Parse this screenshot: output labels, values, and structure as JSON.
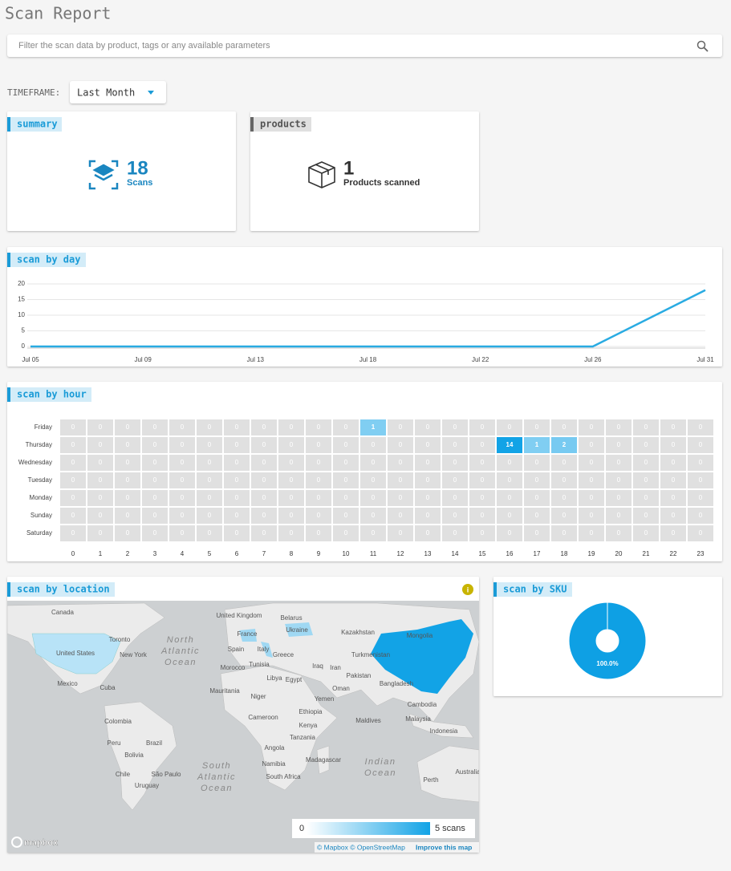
{
  "header": {
    "title": "Scan Report"
  },
  "search": {
    "placeholder": "Filter the scan data by product, tags or any available parameters"
  },
  "timeframe": {
    "label": "TIMEFRAME:",
    "value": "Last Month"
  },
  "summary": {
    "tag": "summary",
    "count": 18,
    "unit": "Scans"
  },
  "products": {
    "tag": "products",
    "count": 1,
    "unit": "Products scanned"
  },
  "chart_data": [
    {
      "type": "line",
      "title": "scan by day",
      "categories": [
        "Jul 05",
        "Jul 09",
        "Jul 13",
        "Jul 18",
        "Jul 22",
        "Jul 26",
        "Jul 31"
      ],
      "series": [
        {
          "color": "#29abe2",
          "values": [
            0,
            0,
            0,
            0,
            0,
            0,
            18
          ]
        }
      ],
      "ylim": [
        0,
        20
      ],
      "yticks": [
        0,
        5,
        10,
        15,
        20
      ],
      "grid": true
    },
    {
      "type": "heatmap",
      "title": "scan by hour",
      "categories": [
        0,
        1,
        2,
        3,
        4,
        5,
        6,
        7,
        8,
        9,
        10,
        11,
        12,
        13,
        14,
        15,
        16,
        17,
        18,
        19,
        20,
        21,
        22,
        23
      ],
      "color": "#12a3e6",
      "empty_color": "#e0e0e0",
      "series": [
        {
          "name": "Friday",
          "values": [
            0,
            0,
            0,
            0,
            0,
            0,
            0,
            0,
            0,
            0,
            0,
            1,
            0,
            0,
            0,
            0,
            0,
            0,
            0,
            0,
            0,
            0,
            0,
            0
          ]
        },
        {
          "name": "Thursday",
          "values": [
            0,
            0,
            0,
            0,
            0,
            0,
            0,
            0,
            0,
            0,
            0,
            0,
            0,
            0,
            0,
            0,
            14,
            1,
            2,
            0,
            0,
            0,
            0,
            0
          ]
        },
        {
          "name": "Wednesday",
          "values": [
            0,
            0,
            0,
            0,
            0,
            0,
            0,
            0,
            0,
            0,
            0,
            0,
            0,
            0,
            0,
            0,
            0,
            0,
            0,
            0,
            0,
            0,
            0,
            0
          ]
        },
        {
          "name": "Tuesday",
          "values": [
            0,
            0,
            0,
            0,
            0,
            0,
            0,
            0,
            0,
            0,
            0,
            0,
            0,
            0,
            0,
            0,
            0,
            0,
            0,
            0,
            0,
            0,
            0,
            0
          ]
        },
        {
          "name": "Monday",
          "values": [
            0,
            0,
            0,
            0,
            0,
            0,
            0,
            0,
            0,
            0,
            0,
            0,
            0,
            0,
            0,
            0,
            0,
            0,
            0,
            0,
            0,
            0,
            0,
            0
          ]
        },
        {
          "name": "Sunday",
          "values": [
            0,
            0,
            0,
            0,
            0,
            0,
            0,
            0,
            0,
            0,
            0,
            0,
            0,
            0,
            0,
            0,
            0,
            0,
            0,
            0,
            0,
            0,
            0,
            0
          ]
        },
        {
          "name": "Saturday",
          "values": [
            0,
            0,
            0,
            0,
            0,
            0,
            0,
            0,
            0,
            0,
            0,
            0,
            0,
            0,
            0,
            0,
            0,
            0,
            0,
            0,
            0,
            0,
            0,
            0
          ]
        }
      ]
    },
    {
      "type": "pie",
      "title": "scan by SKU",
      "values": [
        100
      ],
      "value_labels": [
        "100.0%"
      ],
      "colors": [
        "#0ea0e4"
      ]
    }
  ],
  "map": {
    "title": "scan by location",
    "places": [
      "Canada",
      "United Kingdom",
      "Belarus",
      "Ukraine",
      "Kazakhstan",
      "Mongolia",
      "France",
      "Spain",
      "Italy",
      "Greece",
      "Turkmenistan",
      "Toronto",
      "New York",
      "United States",
      "Morocco",
      "Tunisia",
      "Iraq",
      "Iran",
      "Libya",
      "Egypt",
      "Pakistan",
      "Bangladesh",
      "Mexico",
      "Cuba",
      "Oman",
      "Mauritania",
      "Niger",
      "Yemen",
      "Ethiopia",
      "Cameroon",
      "Colombia",
      "Maldives",
      "Malaysia",
      "Cambodia",
      "Kenya",
      "Indonesia",
      "Peru",
      "Brazil",
      "Tanzania",
      "Angola",
      "Bolivia",
      "Madagascar",
      "Namibia",
      "Chile",
      "São Paulo",
      "South Africa",
      "Uruguay",
      "Perth",
      "Australia"
    ],
    "oceans": [
      [
        "North",
        "Atlantic",
        "Ocean"
      ],
      [
        "South",
        "Atlantic",
        "Ocean"
      ],
      [
        "Indian",
        "Ocean"
      ]
    ],
    "legend": {
      "min": "0",
      "max": "5 scans"
    },
    "logo": "mapbox",
    "attribution": "© Mapbox © OpenStreetMap",
    "improve": "Improve this map"
  }
}
